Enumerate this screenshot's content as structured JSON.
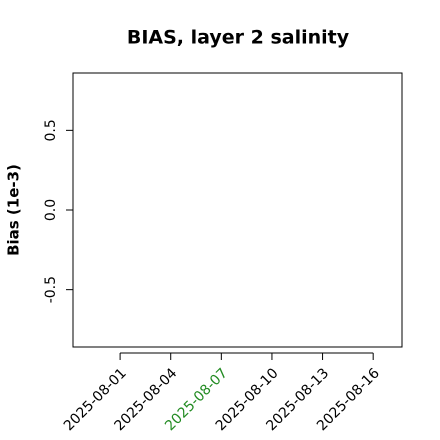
{
  "chart_data": {
    "type": "line",
    "title": "BIAS, layer 2 salinity",
    "y_label": "Bias (1e-3)",
    "x": [],
    "series": [],
    "xlim": [
      "2025-07-29T05:00",
      "2025-08-17T17:00"
    ],
    "xticks": [
      "2025-08-01",
      "2025-08-04",
      "2025-08-07",
      "2025-08-10",
      "2025-08-13",
      "2025-08-16"
    ],
    "xtick_colors": [
      "#000000",
      "#000000",
      "#228b22",
      "#000000",
      "#000000",
      "#000000"
    ],
    "ylim": [
      -0.86,
      0.86
    ],
    "yticks": [
      -0.5,
      {
        "value": 0,
        "label": "0.0"
      },
      0.5
    ]
  }
}
